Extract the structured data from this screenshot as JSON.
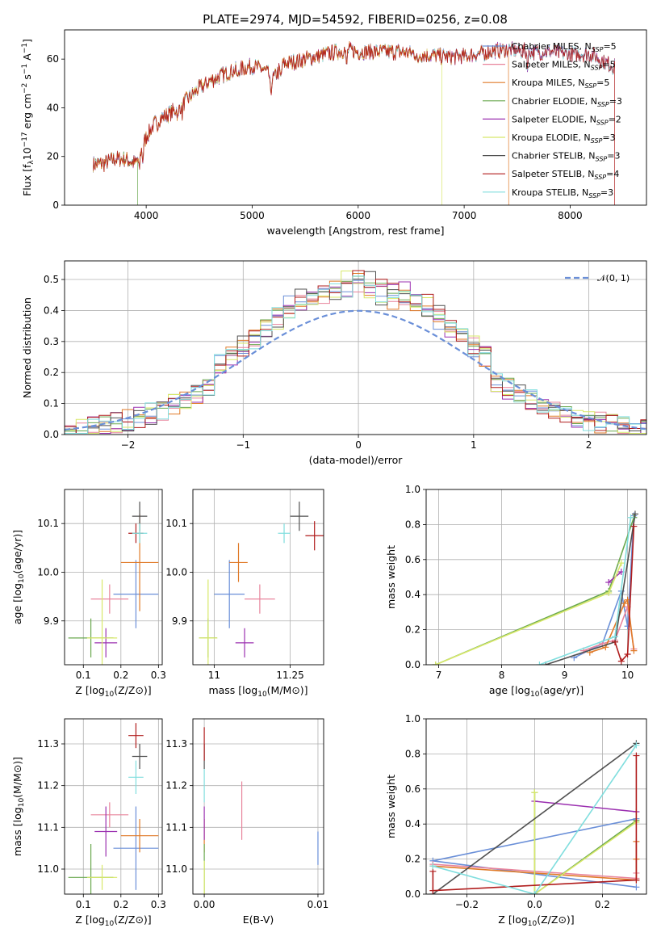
{
  "title": "PLATE=2974, MJD=54592, FIBERID=0256, z=0.08",
  "models": [
    {
      "name": "Chabrier MILES",
      "nssp": "5",
      "color": "#6a8fd8"
    },
    {
      "name": "Salpeter MILES",
      "nssp": "5",
      "color": "#e8849c"
    },
    {
      "name": "Kroupa MILES",
      "nssp": "5",
      "color": "#e07a28"
    },
    {
      "name": "Chabrier ELODIE",
      "nssp": "3",
      "color": "#6aa84f"
    },
    {
      "name": "Salpeter ELODIE",
      "nssp": "2",
      "color": "#9b30b0"
    },
    {
      "name": "Kroupa ELODIE",
      "nssp": "3",
      "color": "#d8e86a"
    },
    {
      "name": "Chabrier STELIB",
      "nssp": "3",
      "color": "#505050"
    },
    {
      "name": "Salpeter STELIB",
      "nssp": "4",
      "color": "#b01c1c"
    },
    {
      "name": "Kroupa STELIB",
      "nssp": "3",
      "color": "#80dede"
    }
  ],
  "nssp_prefix": "N",
  "nssp_sub": "SSP",
  "normal_label": "𝒩(0, 1)",
  "chart_data": [
    {
      "id": "spectrum",
      "type": "line",
      "xlabel": "wavelength [Angstrom, rest frame]",
      "ylabel": "Flux [f_λ10^-17 erg cm^-2 s^-1 A^-1]",
      "xlim": [
        3230,
        8720
      ],
      "ylim": [
        0,
        72
      ],
      "xticks": [
        4000,
        5000,
        6000,
        7000,
        8000
      ],
      "yticks": [
        0,
        20,
        40,
        60
      ],
      "grid": false,
      "legend": "top-right",
      "continuum": {
        "x": [
          3500,
          3600,
          3700,
          3800,
          3900,
          4000,
          4100,
          4200,
          4300,
          4400,
          4500,
          4600,
          4700,
          4800,
          4900,
          5000,
          5100,
          5200,
          5300,
          5400,
          5500,
          5600,
          5700,
          5800,
          5900,
          6000,
          6200,
          6400,
          6600,
          6800,
          7000,
          7200,
          7400,
          7600,
          7800,
          8000,
          8200,
          8400
        ],
        "y": [
          17,
          17,
          19,
          19,
          17,
          28,
          35,
          37,
          40,
          44,
          48,
          51,
          53,
          55,
          56,
          57,
          56,
          52,
          58,
          59,
          60,
          61,
          62,
          63,
          64,
          63,
          63,
          63,
          62,
          61,
          61,
          63,
          64,
          63,
          63,
          62,
          62,
          57
        ]
      },
      "absorption_lines": [
        {
          "x": 3934,
          "depth": 7
        },
        {
          "x": 3969,
          "depth": 6
        },
        {
          "x": 4102,
          "depth": 4
        },
        {
          "x": 4300,
          "depth": 5
        },
        {
          "x": 4340,
          "depth": 4
        },
        {
          "x": 4861,
          "depth": 4
        },
        {
          "x": 5175,
          "depth": 9
        },
        {
          "x": 5270,
          "depth": 4
        },
        {
          "x": 5890,
          "depth": 7
        },
        {
          "x": 6563,
          "depth": 5
        },
        {
          "x": 7190,
          "depth": 4
        },
        {
          "x": 7600,
          "depth": 5
        }
      ],
      "drops": [
        {
          "series": 3,
          "x_start": 3500,
          "x_end": 3920
        },
        {
          "series": 5,
          "x_start": 3500,
          "x_end": 6790
        },
        {
          "series": 2,
          "x_start": 3500,
          "x_end": 7420
        },
        {
          "series": 7,
          "x_start": 3500,
          "x_end": 8420
        }
      ]
    },
    {
      "id": "residuals",
      "type": "area",
      "xlabel": "(data-model)/error",
      "ylabel": "Normed distribution",
      "xlim": [
        -2.55,
        2.5
      ],
      "ylim": [
        0,
        0.56
      ],
      "xticks": [
        -2,
        -1,
        0,
        1,
        2
      ],
      "yticks": [
        0.0,
        0.1,
        0.2,
        0.3,
        0.4,
        0.5
      ],
      "grid": true,
      "legend": "top-right",
      "bin_width": 0.1,
      "bin_start": -2.55,
      "normal": {
        "mean": 0,
        "sigma": 1
      }
    },
    {
      "id": "age_vs_Z",
      "type": "scatter",
      "xlabel": "Z [log10(Z/Z⊙)]",
      "ylabel": "age  [log10(age/yr)]",
      "xlim": [
        0.05,
        0.31
      ],
      "ylim": [
        9.81,
        10.17
      ],
      "xticks": [
        0.1,
        0.2,
        0.3
      ],
      "yticks": [
        9.9,
        10.0,
        10.1
      ],
      "grid": true,
      "points": [
        {
          "series": 0,
          "x": 0.24,
          "y": 9.955,
          "xerr": 0.06,
          "yerr": 0.07
        },
        {
          "series": 1,
          "x": 0.17,
          "y": 9.945,
          "xerr": 0.05,
          "yerr": 0.03
        },
        {
          "series": 2,
          "x": 0.25,
          "y": 10.02,
          "xerr": 0.05,
          "yerr": 0.1
        },
        {
          "series": 3,
          "x": 0.12,
          "y": 9.865,
          "xerr": 0.06,
          "yerr": 0.04
        },
        {
          "series": 4,
          "x": 0.16,
          "y": 9.855,
          "xerr": 0.03,
          "yerr": 0.03
        },
        {
          "series": 5,
          "x": 0.15,
          "y": 9.865,
          "xerr": 0.04,
          "yerr": 0.12
        },
        {
          "series": 6,
          "x": 0.25,
          "y": 10.115,
          "xerr": 0.02,
          "yerr": 0.03
        },
        {
          "series": 7,
          "x": 0.24,
          "y": 10.08,
          "xerr": 0.02,
          "yerr": 0.02
        },
        {
          "series": 8,
          "x": 0.25,
          "y": 10.08,
          "xerr": 0.02,
          "yerr": 0.02
        }
      ]
    },
    {
      "id": "age_vs_mass",
      "type": "scatter",
      "xlabel": "mass [log10(M/M⊙)]",
      "ylabel": "",
      "xlim": [
        10.93,
        11.36
      ],
      "ylim": [
        9.81,
        10.17
      ],
      "xticks": [
        11.0,
        11.25
      ],
      "yticks": [
        9.9,
        10.0,
        10.1
      ],
      "grid": true,
      "points": [
        {
          "series": 0,
          "x": 11.05,
          "y": 9.955,
          "xerr": 0.05,
          "yerr": 0.07
        },
        {
          "series": 1,
          "x": 11.15,
          "y": 9.945,
          "xerr": 0.05,
          "yerr": 0.03
        },
        {
          "series": 2,
          "x": 11.08,
          "y": 10.02,
          "xerr": 0.03,
          "yerr": 0.04
        },
        {
          "series": 3,
          "x": 10.98,
          "y": 9.865,
          "xerr": 0.03,
          "yerr": 0.04
        },
        {
          "series": 4,
          "x": 11.1,
          "y": 9.855,
          "xerr": 0.03,
          "yerr": 0.03
        },
        {
          "series": 5,
          "x": 10.98,
          "y": 9.865,
          "xerr": 0.03,
          "yerr": 0.12
        },
        {
          "series": 6,
          "x": 11.28,
          "y": 10.115,
          "xerr": 0.03,
          "yerr": 0.03
        },
        {
          "series": 7,
          "x": 11.33,
          "y": 10.075,
          "xerr": 0.03,
          "yerr": 0.03
        },
        {
          "series": 8,
          "x": 11.23,
          "y": 10.08,
          "xerr": 0.02,
          "yerr": 0.02
        }
      ]
    },
    {
      "id": "weight_vs_age",
      "type": "line",
      "xlabel": "age  [log10(age/yr)]",
      "ylabel": "mass weight",
      "xlim": [
        6.8,
        10.3
      ],
      "ylim": [
        0,
        1.0
      ],
      "xticks": [
        7,
        8,
        9,
        10
      ],
      "yticks": [
        0.0,
        0.2,
        0.4,
        0.6,
        0.8,
        1.0
      ],
      "grid": true,
      "series": [
        {
          "series": 0,
          "x": [
            9.15,
            9.6,
            9.9,
            10.0,
            10.1
          ],
          "y": [
            0.04,
            0.12,
            0.42,
            0.22,
            0.85
          ]
        },
        {
          "series": 1,
          "x": [
            9.3,
            9.6,
            9.8,
            10.0,
            10.1
          ],
          "y": [
            0.08,
            0.12,
            0.14,
            0.33,
            0.09
          ]
        },
        {
          "series": 2,
          "x": [
            9.4,
            9.65,
            9.95,
            10.0,
            10.1
          ],
          "y": [
            0.07,
            0.1,
            0.35,
            0.37,
            0.08
          ]
        },
        {
          "series": 3,
          "x": [
            6.95,
            9.7,
            10.1
          ],
          "y": [
            0.0,
            0.42,
            0.84
          ]
        },
        {
          "series": 4,
          "x": [
            9.7,
            9.9
          ],
          "y": [
            0.47,
            0.53
          ]
        },
        {
          "series": 5,
          "x": [
            6.95,
            9.7,
            9.9
          ],
          "y": [
            0.0,
            0.41,
            0.58
          ]
        },
        {
          "series": 6,
          "x": [
            8.7,
            9.8,
            10.12
          ],
          "y": [
            0.0,
            0.13,
            0.86
          ]
        },
        {
          "series": 7,
          "x": [
            9.8,
            9.9,
            10.0,
            10.1
          ],
          "y": [
            0.13,
            0.02,
            0.06,
            0.79
          ]
        },
        {
          "series": 8,
          "x": [
            8.6,
            9.8,
            10.05
          ],
          "y": [
            0.0,
            0.16,
            0.84
          ]
        }
      ]
    },
    {
      "id": "mass_vs_Z",
      "type": "scatter",
      "xlabel": "Z [log10(Z/Z⊙)]",
      "ylabel": "mass [log10(M/M⊙)]",
      "xlim": [
        0.05,
        0.31
      ],
      "ylim": [
        10.94,
        11.36
      ],
      "xticks": [
        0.1,
        0.2,
        0.3
      ],
      "yticks": [
        11.0,
        11.1,
        11.2,
        11.3
      ],
      "grid": true,
      "points": [
        {
          "series": 0,
          "x": 0.24,
          "y": 11.05,
          "xerr": 0.06,
          "yerr": 0.1
        },
        {
          "series": 1,
          "x": 0.17,
          "y": 11.13,
          "xerr": 0.05,
          "yerr": 0.03
        },
        {
          "series": 2,
          "x": 0.25,
          "y": 11.08,
          "xerr": 0.05,
          "yerr": 0.04
        },
        {
          "series": 3,
          "x": 0.12,
          "y": 10.98,
          "xerr": 0.06,
          "yerr": 0.08
        },
        {
          "series": 4,
          "x": 0.16,
          "y": 11.09,
          "xerr": 0.03,
          "yerr": 0.06
        },
        {
          "series": 5,
          "x": 0.15,
          "y": 10.98,
          "xerr": 0.04,
          "yerr": 0.03
        },
        {
          "series": 6,
          "x": 0.25,
          "y": 11.27,
          "xerr": 0.02,
          "yerr": 0.03
        },
        {
          "series": 7,
          "x": 0.24,
          "y": 11.32,
          "xerr": 0.02,
          "yerr": 0.03
        },
        {
          "series": 8,
          "x": 0.24,
          "y": 11.22,
          "xerr": 0.02,
          "yerr": 0.04
        }
      ]
    },
    {
      "id": "mass_vs_EBV",
      "type": "scatter",
      "xlabel": "E(B-V)",
      "ylabel": "",
      "xlim": [
        -0.001,
        0.0105
      ],
      "ylim": [
        10.94,
        11.36
      ],
      "xticks": [
        0.0,
        0.01
      ],
      "xticklabels": [
        "0.00",
        "0.01"
      ],
      "yticks": [
        11.0,
        11.1,
        11.2,
        11.3
      ],
      "grid": true,
      "points": [
        {
          "series": 0,
          "x": 0.01,
          "y": 11.05,
          "xerr": 0,
          "yerr": 0.04
        },
        {
          "series": 1,
          "x": 0.0033,
          "y": 11.14,
          "xerr": 0,
          "yerr": 0.07
        },
        {
          "series": 2,
          "x": 0.0,
          "y": 11.08,
          "xerr": 0,
          "yerr": 0.04
        },
        {
          "series": 3,
          "x": 0.0,
          "y": 10.98,
          "xerr": 0,
          "yerr": 0.08
        },
        {
          "series": 4,
          "x": 0.0,
          "y": 11.11,
          "xerr": 0,
          "yerr": 0.04
        },
        {
          "series": 5,
          "x": 0.0,
          "y": 10.98,
          "xerr": 0,
          "yerr": 0.04
        },
        {
          "series": 6,
          "x": 0.0,
          "y": 11.27,
          "xerr": 0,
          "yerr": 0.03
        },
        {
          "series": 7,
          "x": 0.0,
          "y": 11.3,
          "xerr": 0,
          "yerr": 0.04
        },
        {
          "series": 8,
          "x": 0.0,
          "y": 11.2,
          "xerr": 0,
          "yerr": 0.04
        }
      ]
    },
    {
      "id": "weight_vs_Z",
      "type": "line",
      "xlabel": "Z [log10(Z/Z⊙)]",
      "ylabel": "mass weight",
      "xlim": [
        -0.32,
        0.33
      ],
      "ylim": [
        0,
        1.0
      ],
      "xticks": [
        -0.2,
        0.0,
        0.2
      ],
      "yticks": [
        0.0,
        0.2,
        0.4,
        0.6,
        0.8,
        1.0
      ],
      "grid": true,
      "series": [
        {
          "series": 0,
          "x": [
            0.3,
            -0.3,
            0.3
          ],
          "y": [
            0.04,
            0.19,
            0.43
          ]
        },
        {
          "series": 1,
          "x": [
            -0.3,
            0.3,
            0.3
          ],
          "y": [
            0.17,
            0.09,
            0.12
          ]
        },
        {
          "series": 2,
          "x": [
            -0.3,
            0.3,
            0.3,
            0.3
          ],
          "y": [
            0.16,
            0.08,
            0.2,
            0.3
          ]
        },
        {
          "series": 3,
          "x": [
            0.0,
            0.0,
            0.3
          ],
          "y": [
            0.58,
            0.0,
            0.42
          ]
        },
        {
          "series": 4,
          "x": [
            0.0,
            0.3
          ],
          "y": [
            0.53,
            0.47
          ]
        },
        {
          "series": 5,
          "x": [
            0.0,
            0.0,
            0.3
          ],
          "y": [
            0.58,
            0.0,
            0.41
          ]
        },
        {
          "series": 6,
          "x": [
            -0.3,
            0.3
          ],
          "y": [
            0.0,
            0.86
          ]
        },
        {
          "series": 7,
          "x": [
            -0.3,
            -0.3,
            0.3,
            0.3
          ],
          "y": [
            0.13,
            0.02,
            0.08,
            0.79
          ]
        },
        {
          "series": 8,
          "x": [
            -0.3,
            0.0,
            0.3
          ],
          "y": [
            0.16,
            0.0,
            0.85
          ]
        }
      ]
    }
  ]
}
